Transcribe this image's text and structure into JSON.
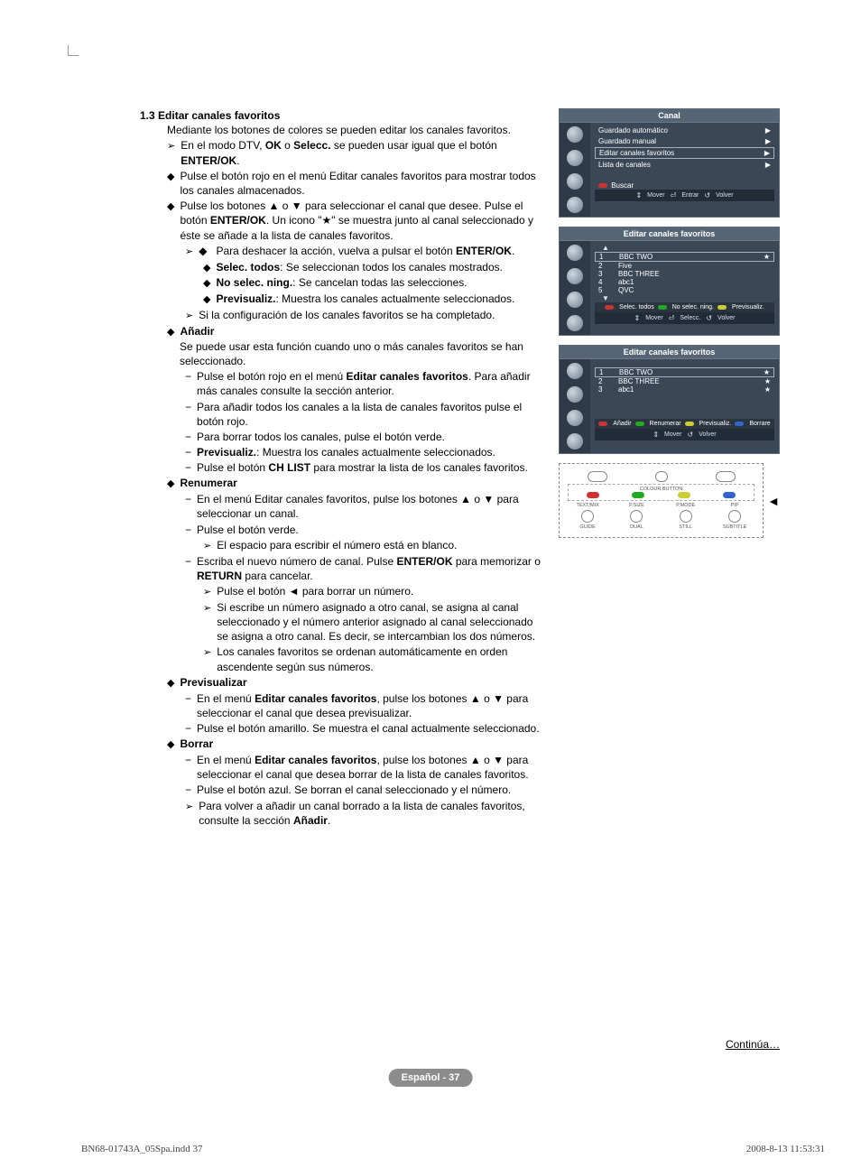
{
  "doc": {
    "section_number": "1.3",
    "section_title": "Editar canales favoritos",
    "intro": "Mediante los botones de colores se pueden editar los canales favoritos.",
    "dtv_line_pre": "En el modo DTV, ",
    "dtv_ok": "OK",
    "dtv_o": " o ",
    "dtv_selecc": "Selecc.",
    "dtv_line_post": " se pueden usar igual que el botón ",
    "dtv_enterok": "ENTER/OK",
    "dtv_period": ".",
    "red_btn_line": "Pulse el botón rojo en el menú Editar canales favoritos para mostrar todos los canales almacenados.",
    "arrows_line": "Pulse los botones ▲ o ▼ para seleccionar el canal que desee. Pulse el botón ",
    "arrows_enterok": "ENTER/OK",
    "arrows_after": ". Un icono \"★\" se muestra junto al canal seleccionado y éste se añade a la lista de canales favoritos.",
    "undo_pre": "Para deshacer la acción, vuelva a pulsar el botón ",
    "undo_enterok": "ENTER/OK",
    "undo_period": ".",
    "sel_todos": "Selec. todos",
    "sel_todos_txt": ": Se seleccionan todos los canales mostrados.",
    "no_sel": "No selec. ning.",
    "no_sel_txt": ": Se cancelan todas las selecciones.",
    "previs": "Previsualiz.",
    "previs_txt": ": Muestra los canales actualmente seleccionados.",
    "config_done": "Si la configuración de los canales favoritos se ha completado.",
    "anadir": "Añadir",
    "anadir_txt": "Se puede usar esta función cuando uno o más canales favoritos se han seleccionado.",
    "anadir_d1_a": "Pulse el botón rojo en el menú ",
    "anadir_d1_b": "Editar canales favoritos",
    "anadir_d1_c": ". Para añadir más canales consulte la sección anterior.",
    "anadir_d2": "Para añadir todos los canales a la lista de canales favoritos pulse el botón rojo.",
    "anadir_d3": "Para borrar todos los canales, pulse el botón verde.",
    "anadir_d4a": "Previsualiz.",
    "anadir_d4b": ": Muestra los canales actualmente seleccionados.",
    "anadir_d5_a": "Pulse el botón ",
    "anadir_d5_b": "CH LIST",
    "anadir_d5_c": " para mostrar la lista de los canales favoritos.",
    "renum": "Renumerar",
    "renum_d1": "En el menú Editar canales favoritos, pulse los botones ▲ o ▼ para seleccionar un canal.",
    "renum_d2": "Pulse el botón verde.",
    "renum_sub1": "El espacio para escribir el número está en blanco.",
    "renum_d3_a": "Escriba el nuevo número de canal. Pulse ",
    "renum_d3_b": "ENTER/OK",
    "renum_d3_c": " para memorizar o ",
    "renum_d3_d": "RETURN",
    "renum_d3_e": " para cancelar.",
    "renum_sub2": "Pulse el botón ◄ para borrar un número.",
    "renum_sub3": "Si escribe un número asignado a otro canal, se asigna al canal seleccionado y el número anterior asignado al canal seleccionado se asigna a otro canal. Es decir, se intercambian los dos números.",
    "renum_sub4": "Los canales favoritos se ordenan automáticamente en orden ascendente según sus números.",
    "prev_title": "Previsualizar",
    "prev_d1_a": "En el menú ",
    "prev_d1_b": "Editar canales favoritos",
    "prev_d1_c": ", pulse los botones ▲ o ▼ para seleccionar el canal que desea previsualizar.",
    "prev_d2": "Pulse el botón amarillo. Se muestra el canal actualmente seleccionado.",
    "borrar": "Borrar",
    "borrar_d1_a": "En el menú ",
    "borrar_d1_b": "Editar canales favoritos",
    "borrar_d1_c": ", pulse los botones ▲ o ▼ para seleccionar el canal que desea borrar de la lista de canales favoritos.",
    "borrar_d2": "Pulse el botón azul. Se borran el canal seleccionado y el número.",
    "borrar_sub_a": "Para volver a añadir un canal borrado a la lista de canales favoritos, consulte la sección ",
    "borrar_sub_b": "Añadir",
    "borrar_sub_c": ".",
    "continua": "Continúa…",
    "page_label": "Español - 37",
    "footer_left": "BN68-01743A_05Spa.indd   37",
    "footer_right": "2008-8-13   11:53:31"
  },
  "osd1": {
    "title": "Canal",
    "items": [
      "Guardado automático",
      "Guardado manual",
      "Editar canales favoritos",
      "Lista de canales"
    ],
    "selected_index": 2,
    "buscar": "Buscar",
    "nav": {
      "mover": "Mover",
      "entrar": "Entrar",
      "volver": "Volver"
    }
  },
  "osd2": {
    "title": "Editar canales favoritos",
    "channels": [
      {
        "num": "1",
        "name": "BBC TWO",
        "star": true,
        "sel": true
      },
      {
        "num": "2",
        "name": "Five",
        "star": false,
        "sel": false
      },
      {
        "num": "3",
        "name": "BBC THREE",
        "star": false,
        "sel": false
      },
      {
        "num": "4",
        "name": "abc1",
        "star": false,
        "sel": false
      },
      {
        "num": "5",
        "name": "QVC",
        "star": false,
        "sel": false
      }
    ],
    "legend": {
      "red": "Selec. todos",
      "green": "No selec. ning.",
      "yellow": "Previsualiz."
    },
    "nav": {
      "mover": "Mover",
      "selecc": "Selecc.",
      "volver": "Volver"
    }
  },
  "osd3": {
    "title": "Editar canales favoritos",
    "channels": [
      {
        "num": "1",
        "name": "BBC TWO",
        "star": true,
        "sel": true
      },
      {
        "num": "2",
        "name": "BBC THREE",
        "star": true,
        "sel": false
      },
      {
        "num": "3",
        "name": "abc1",
        "star": true,
        "sel": false
      }
    ],
    "legend": {
      "red": "Añadir",
      "green": "Renumerar",
      "yellow": "Previsualiz.",
      "blue": "Borrare"
    },
    "nav": {
      "mover": "Mover",
      "volver": "Volver"
    }
  },
  "remote": {
    "colour_button_lbl": "COLOUR BUTTON",
    "row1": [
      "",
      "",
      ""
    ],
    "row2": [
      "TEXT/MIX",
      "P.SIZE",
      "P.MODE",
      "PIP"
    ],
    "row3": [
      "GUIDE",
      "DUAL",
      "STILL",
      "SUBTITLE"
    ]
  }
}
